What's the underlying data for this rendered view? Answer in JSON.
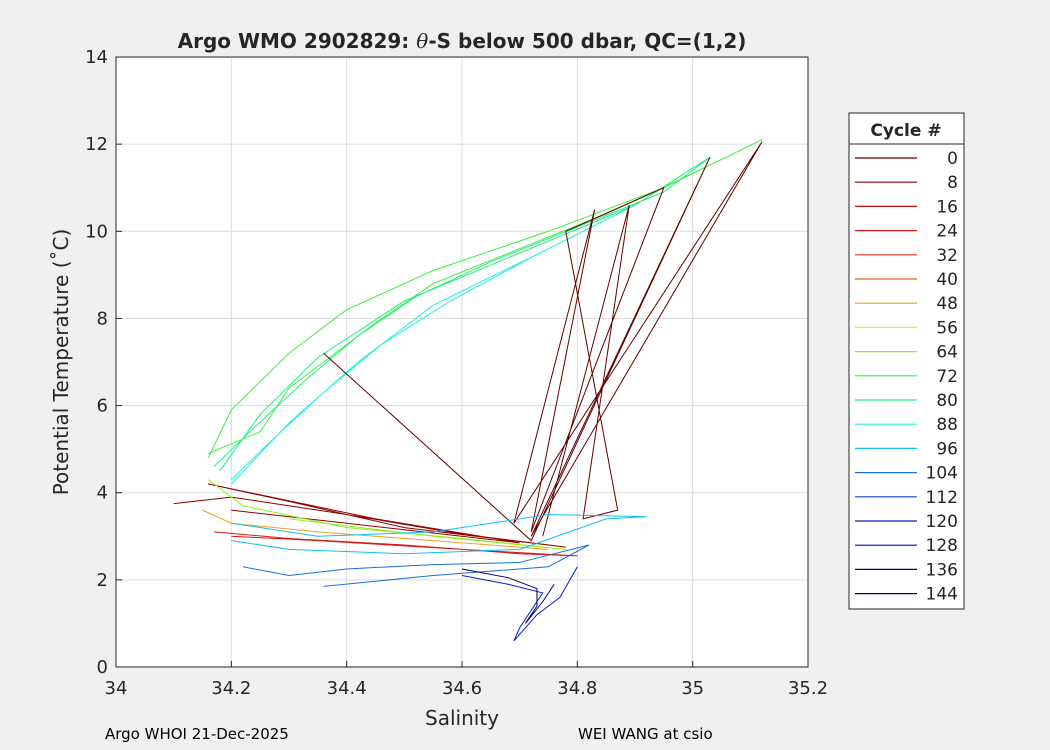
{
  "chart_data": {
    "type": "line",
    "title_prefix": "Argo WMO 2902829: ",
    "title_theta": "θ",
    "title_suffix": "-S below 500 dbar,  QC=(1,2)",
    "xlabel": "Salinity",
    "ylabel": "Potential Temperature (˚C)",
    "xlim": [
      34,
      35.2
    ],
    "ylim": [
      0,
      14
    ],
    "xticks": [
      34,
      34.2,
      34.4,
      34.6,
      34.8,
      35,
      35.2
    ],
    "xtick_labels": [
      "34",
      "34.2",
      "34.4",
      "34.6",
      "34.8",
      "35",
      "35.2"
    ],
    "yticks": [
      0,
      2,
      4,
      6,
      8,
      10,
      12,
      14
    ],
    "ytick_labels": [
      "0",
      "2",
      "4",
      "6",
      "8",
      "10",
      "12",
      "14"
    ],
    "grid": true,
    "legend": {
      "title": "Cycle #",
      "placement": "right-outside",
      "entries": [
        {
          "label": "0",
          "color": "#600000"
        },
        {
          "label": "8",
          "color": "#900000"
        },
        {
          "label": "16",
          "color": "#c81010"
        },
        {
          "label": "24",
          "color": "#d81a1a"
        },
        {
          "label": "32",
          "color": "#e83020"
        },
        {
          "label": "40",
          "color": "#e86020"
        },
        {
          "label": "48",
          "color": "#f0a020"
        },
        {
          "label": "56",
          "color": "#e0f020"
        },
        {
          "label": "64",
          "color": "#90f020"
        },
        {
          "label": "72",
          "color": "#40f040"
        },
        {
          "label": "80",
          "color": "#20f080"
        },
        {
          "label": "88",
          "color": "#20f0e0"
        },
        {
          "label": "96",
          "color": "#10c0f0"
        },
        {
          "label": "104",
          "color": "#1870e0"
        },
        {
          "label": "112",
          "color": "#1040d0"
        },
        {
          "label": "120",
          "color": "#0820c0"
        },
        {
          "label": "128",
          "color": "#0010b0"
        },
        {
          "label": "136",
          "color": "#000890"
        },
        {
          "label": "144",
          "color": "#000070"
        }
      ]
    },
    "series": [
      {
        "name": "72",
        "color": "#40f040",
        "points": [
          [
            34.16,
            4.9
          ],
          [
            34.25,
            5.4
          ],
          [
            34.3,
            6.4
          ],
          [
            34.38,
            7.2
          ],
          [
            34.45,
            7.9
          ],
          [
            34.55,
            8.8
          ],
          [
            34.7,
            9.6
          ],
          [
            34.85,
            10.4
          ],
          [
            34.98,
            11.2
          ],
          [
            35.12,
            12.1
          ],
          [
            34.95,
            11.0
          ],
          [
            34.75,
            10.0
          ],
          [
            34.55,
            9.1
          ],
          [
            34.4,
            8.2
          ],
          [
            34.3,
            7.2
          ],
          [
            34.2,
            5.9
          ],
          [
            34.16,
            4.8
          ]
        ]
      },
      {
        "name": "80",
        "color": "#20f080",
        "points": [
          [
            34.17,
            4.6
          ],
          [
            34.24,
            5.5
          ],
          [
            34.33,
            6.6
          ],
          [
            34.42,
            7.6
          ],
          [
            34.52,
            8.5
          ],
          [
            34.65,
            9.3
          ],
          [
            34.8,
            10.1
          ],
          [
            34.95,
            10.9
          ],
          [
            35.03,
            11.7
          ],
          [
            34.9,
            10.6
          ],
          [
            34.7,
            9.5
          ],
          [
            34.5,
            8.4
          ],
          [
            34.35,
            7.1
          ],
          [
            34.25,
            5.8
          ],
          [
            34.18,
            4.5
          ]
        ]
      },
      {
        "name": "88",
        "color": "#20f0e0",
        "points": [
          [
            34.2,
            4.3
          ],
          [
            34.27,
            5.2
          ],
          [
            34.36,
            6.3
          ],
          [
            34.46,
            7.4
          ],
          [
            34.58,
            8.4
          ],
          [
            34.72,
            9.4
          ],
          [
            34.9,
            10.6
          ],
          [
            34.75,
            9.6
          ],
          [
            34.55,
            8.3
          ],
          [
            34.42,
            7.0
          ],
          [
            34.3,
            5.6
          ],
          [
            34.2,
            4.2
          ]
        ]
      },
      {
        "name": "0",
        "color": "#600000",
        "points": [
          [
            34.36,
            7.2
          ],
          [
            34.72,
            2.9
          ],
          [
            35.03,
            11.7
          ],
          [
            34.72,
            3.0
          ],
          [
            35.12,
            12.05
          ],
          [
            34.69,
            3.3
          ],
          [
            34.83,
            10.5
          ],
          [
            34.72,
            3.1
          ],
          [
            34.95,
            11.0
          ],
          [
            34.78,
            10.0
          ],
          [
            34.87,
            3.6
          ],
          [
            34.81,
            3.4
          ],
          [
            34.89,
            10.6
          ],
          [
            34.74,
            3.0
          ]
        ]
      },
      {
        "name": "8",
        "color": "#900000",
        "points": [
          [
            34.1,
            3.75
          ],
          [
            34.2,
            3.9
          ],
          [
            34.4,
            3.5
          ],
          [
            34.6,
            3.05
          ],
          [
            34.78,
            2.75
          ],
          [
            34.5,
            3.2
          ],
          [
            34.3,
            3.8
          ],
          [
            34.16,
            4.2
          ],
          [
            34.45,
            3.4
          ],
          [
            34.7,
            2.85
          ],
          [
            34.2,
            3.6
          ]
        ]
      },
      {
        "name": "24",
        "color": "#d81a1a",
        "points": [
          [
            34.17,
            3.1
          ],
          [
            34.3,
            2.95
          ],
          [
            34.5,
            2.8
          ],
          [
            34.7,
            2.6
          ],
          [
            34.8,
            2.55
          ],
          [
            34.6,
            2.7
          ],
          [
            34.35,
            2.9
          ],
          [
            34.2,
            3.0
          ]
        ]
      },
      {
        "name": "48",
        "color": "#f0a020",
        "points": [
          [
            34.15,
            3.6
          ],
          [
            34.2,
            3.3
          ],
          [
            34.35,
            3.1
          ],
          [
            34.55,
            2.9
          ],
          [
            34.75,
            2.7
          ]
        ]
      },
      {
        "name": "64",
        "color": "#90f020",
        "points": [
          [
            34.16,
            4.3
          ],
          [
            34.22,
            3.7
          ],
          [
            34.4,
            3.2
          ],
          [
            34.6,
            2.95
          ],
          [
            34.78,
            2.7
          ],
          [
            34.55,
            3.0
          ],
          [
            34.3,
            3.4
          ]
        ]
      },
      {
        "name": "96",
        "color": "#10c0f0",
        "points": [
          [
            34.2,
            2.9
          ],
          [
            34.3,
            2.7
          ],
          [
            34.5,
            2.6
          ],
          [
            34.7,
            2.7
          ],
          [
            34.85,
            3.4
          ],
          [
            34.92,
            3.45
          ],
          [
            34.75,
            3.5
          ],
          [
            34.55,
            3.1
          ],
          [
            34.35,
            3.0
          ],
          [
            34.2,
            3.3
          ]
        ]
      },
      {
        "name": "104",
        "color": "#1870e0",
        "points": [
          [
            34.22,
            2.3
          ],
          [
            34.3,
            2.1
          ],
          [
            34.4,
            2.25
          ],
          [
            34.55,
            2.35
          ],
          [
            34.7,
            2.4
          ],
          [
            34.82,
            2.8
          ],
          [
            34.75,
            2.3
          ],
          [
            34.55,
            2.1
          ],
          [
            34.36,
            1.85
          ]
        ]
      },
      {
        "name": "120",
        "color": "#0820c0",
        "points": [
          [
            34.6,
            2.1
          ],
          [
            34.68,
            1.9
          ],
          [
            34.74,
            1.7
          ],
          [
            34.72,
            1.3
          ],
          [
            34.7,
            0.9
          ],
          [
            34.69,
            0.6
          ],
          [
            34.73,
            1.2
          ],
          [
            34.77,
            1.6
          ],
          [
            34.8,
            2.3
          ]
        ]
      },
      {
        "name": "144",
        "color": "#000070",
        "points": [
          [
            34.6,
            2.25
          ],
          [
            34.68,
            2.05
          ],
          [
            34.73,
            1.8
          ],
          [
            34.73,
            1.4
          ],
          [
            34.71,
            1.0
          ],
          [
            34.74,
            1.5
          ],
          [
            34.76,
            1.9
          ]
        ]
      }
    ]
  },
  "footer": {
    "left": "Argo WHOI 21-Dec-2025",
    "right": "WEI WANG at csio"
  }
}
